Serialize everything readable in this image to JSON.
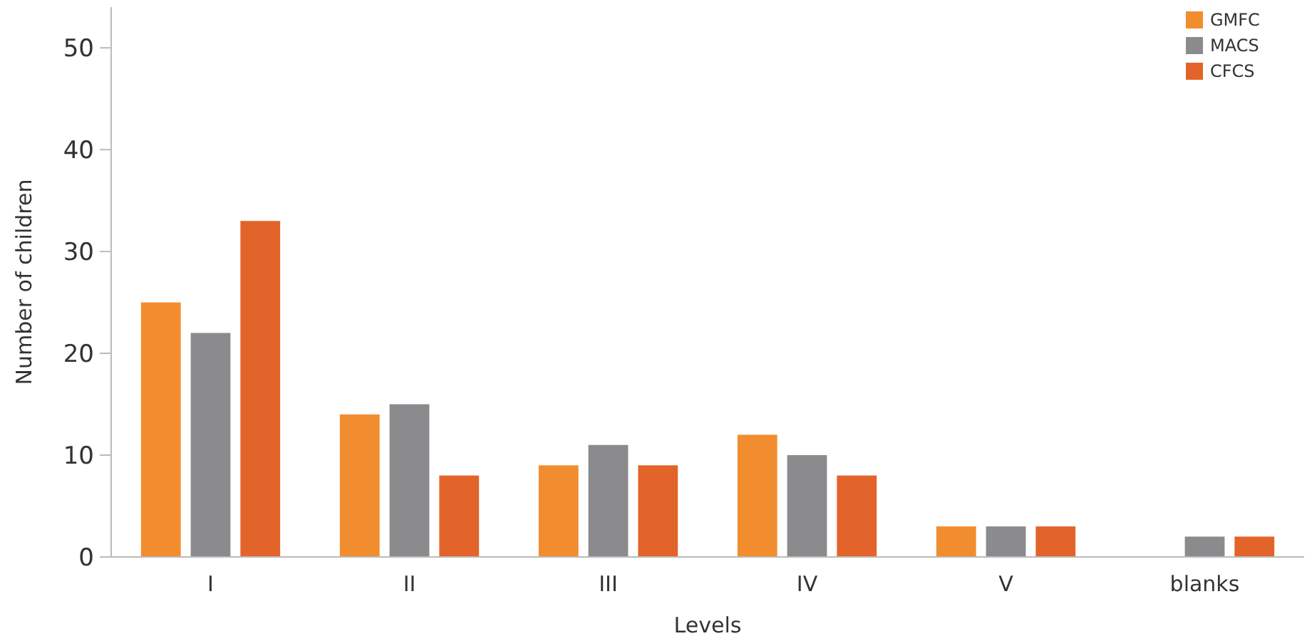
{
  "chart_data": {
    "type": "bar",
    "xlabel": "Levels",
    "ylabel": "Number of children",
    "categories": [
      "I",
      "II",
      "III",
      "IV",
      "V",
      "blanks"
    ],
    "series": [
      {
        "name": "GMFC",
        "color": "#f18d2f",
        "values": [
          25,
          14,
          9,
          12,
          3,
          null
        ]
      },
      {
        "name": "MACS",
        "color": "#8b8b8d",
        "values": [
          22,
          15,
          11,
          10,
          3,
          2
        ]
      },
      {
        "name": "CFCS",
        "color": "#e3642a",
        "values": [
          33,
          8,
          9,
          8,
          3,
          2
        ]
      }
    ],
    "ylim": [
      0,
      54
    ],
    "yticks": [
      0,
      10,
      20,
      30,
      40,
      50
    ],
    "grid": false,
    "legend": "top right"
  }
}
